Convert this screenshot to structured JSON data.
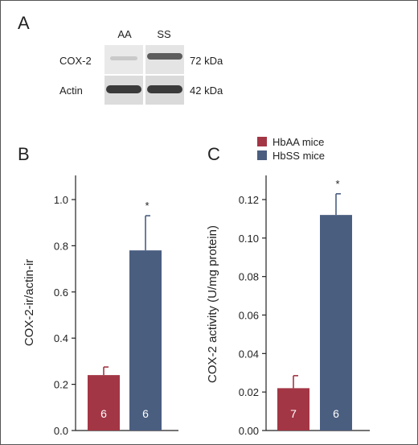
{
  "panel_labels": {
    "a": "A",
    "b": "B",
    "c": "C"
  },
  "blot": {
    "lanes": [
      "AA",
      "SS"
    ],
    "rows": [
      {
        "label": "COX-2",
        "size": "72 kDa"
      },
      {
        "label": "Actin",
        "size": "42 kDa"
      }
    ]
  },
  "legend": {
    "items": [
      {
        "label": "HbAA mice",
        "color": "#a33645"
      },
      {
        "label": "HbSS mice",
        "color": "#4a5e80"
      }
    ]
  },
  "chart_data": [
    {
      "type": "bar",
      "panel": "B",
      "ylabel": "COX-2-ir/actin-ir",
      "xlabel": "",
      "ylim": [
        0,
        1.0
      ],
      "yticks": [
        "0.0",
        "0.2",
        "0.4",
        "0.6",
        "0.8",
        "1.0"
      ],
      "categories": [
        "HbAA mice",
        "HbSS mice"
      ],
      "values": [
        0.24,
        0.78
      ],
      "errors": [
        0.035,
        0.15
      ],
      "n_labels": [
        "6",
        "6"
      ],
      "significance": [
        "",
        "*"
      ],
      "colors": [
        "#a33645",
        "#4a5e80"
      ]
    },
    {
      "type": "bar",
      "panel": "C",
      "ylabel": "COX-2 activity (U/mg protein)",
      "xlabel": "",
      "ylim": [
        0,
        0.12
      ],
      "yticks": [
        "0.00",
        "0.02",
        "0.04",
        "0.06",
        "0.08",
        "0.10",
        "0.12"
      ],
      "categories": [
        "HbAA mice",
        "HbSS mice"
      ],
      "values": [
        0.022,
        0.112
      ],
      "errors": [
        0.0065,
        0.011
      ],
      "n_labels": [
        "7",
        "6"
      ],
      "significance": [
        "",
        "*"
      ],
      "colors": [
        "#a33645",
        "#4a5e80"
      ]
    }
  ]
}
